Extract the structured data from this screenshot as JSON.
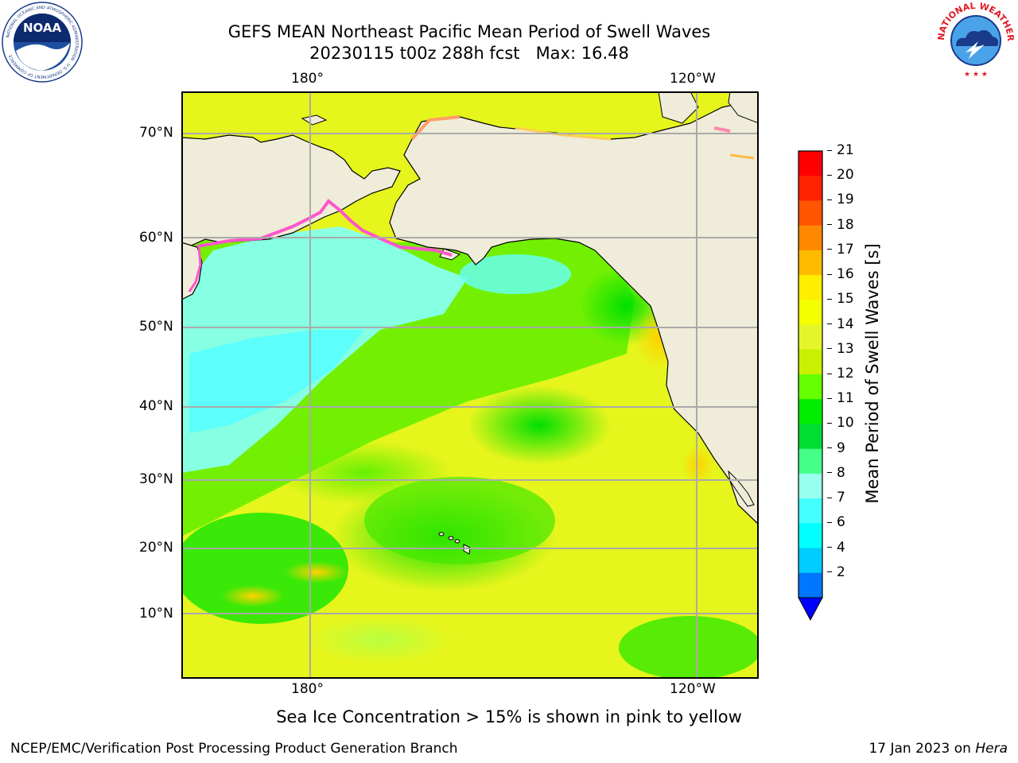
{
  "header": {
    "title_line1": "GEFS MEAN Northeast Pacific Mean Period of Swell Waves",
    "title_line2": "20230115 t00z 288h fcst   Max: 16.48"
  },
  "logos": {
    "left": {
      "name": "noaa-logo",
      "text": "NOAA",
      "ring_text": "NATIONAL OCEANIC AND ATMOSPHERIC ADMINISTRATION · U.S. DEPARTMENT OF COMMERCE"
    },
    "right": {
      "name": "nws-logo",
      "ring_text": "NATIONAL WEATHER SERVICE"
    }
  },
  "map": {
    "lon_labels_top": [
      "180°",
      "120°W"
    ],
    "lon_labels_bottom": [
      "180°",
      "120°W"
    ],
    "lat_labels": [
      "70°N",
      "60°N",
      "50°N",
      "40°N",
      "30°N",
      "20°N",
      "10°N"
    ],
    "colors": {
      "land": "#efecd9",
      "ocean_base": "#e4f52a",
      "coast": "#000000",
      "grid": "#aaaaaa",
      "ice": "#ff55cc"
    }
  },
  "colorbar": {
    "label": "Mean Period of Swell Waves [s]",
    "ticks": [
      "21",
      "20",
      "19",
      "18",
      "17",
      "16",
      "15",
      "14",
      "13",
      "12",
      "11",
      "10",
      "9",
      "8",
      "7",
      "6",
      "4",
      "2"
    ],
    "colors_top_to_bottom": [
      "#ff0000",
      "#ff2200",
      "#ff5500",
      "#ff8800",
      "#ffbb00",
      "#ffee00",
      "#f4ff00",
      "#e4f52a",
      "#c8f000",
      "#66ff00",
      "#00ee00",
      "#00dd33",
      "#44ff88",
      "#99ffee",
      "#44ffff",
      "#00ffff",
      "#00ccff",
      "#0077ff"
    ],
    "extend_color": "#0000ff"
  },
  "notes": {
    "sea_ice": "Sea Ice Concentration > 15% is shown in pink to yellow"
  },
  "footer": {
    "left": "NCEP/EMC/Verification Post Processing Product Generation Branch",
    "date": "17 Jan 2023 on ",
    "host": "Hera"
  }
}
